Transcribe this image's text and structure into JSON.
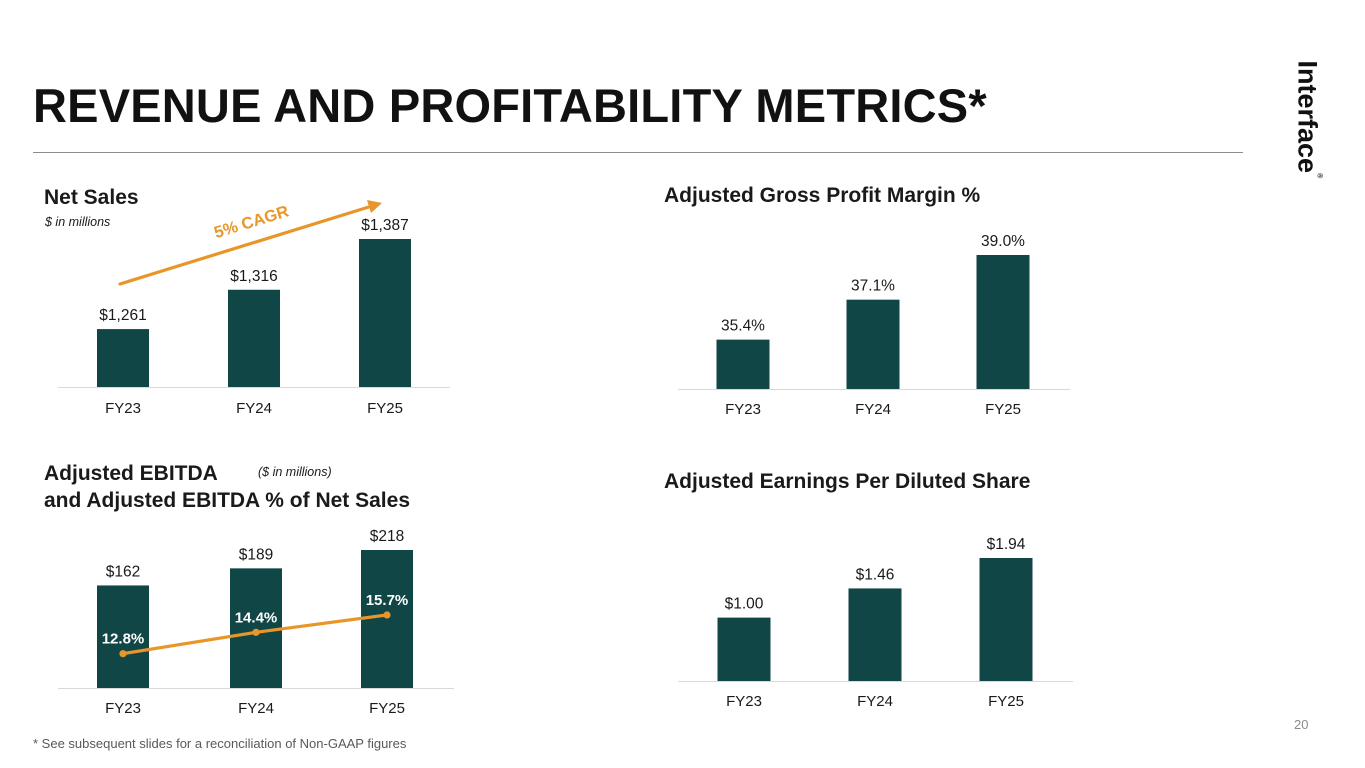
{
  "title": "REVENUE AND PROFITABILITY METRICS*",
  "logo_text": "Interface",
  "logo_mark": "®",
  "footnote": "* See subsequent slides for a reconciliation of Non-GAAP figures",
  "page_number": "20",
  "colors": {
    "bar": "#114647",
    "accent": "#e8962a",
    "text": "#1a1a1a",
    "axis": "#d9d9d9"
  },
  "chart_data": [
    {
      "type": "bar",
      "title": "Net Sales",
      "subtitle": "$ in millions",
      "categories": [
        "FY23",
        "FY24",
        "FY25"
      ],
      "values": [
        1261,
        1316,
        1387
      ],
      "data_labels": [
        "$1,261",
        "$1,316",
        "$1,387"
      ],
      "baseline_value": 1180,
      "annotation": {
        "text": "5% CAGR",
        "type": "arrow"
      }
    },
    {
      "type": "bar",
      "title": "Adjusted Gross Profit Margin %",
      "categories": [
        "FY23",
        "FY24",
        "FY25"
      ],
      "values": [
        35.4,
        37.1,
        39.0
      ],
      "data_labels": [
        "35.4%",
        "37.1%",
        "39.0%"
      ],
      "baseline_value": 33.3
    },
    {
      "type": "bar",
      "title_line1": "Adjusted EBITDA",
      "title_line2": "and Adjusted EBITDA % of Net Sales",
      "subtitle": "($ in millions)",
      "categories": [
        "FY23",
        "FY24",
        "FY25"
      ],
      "values": [
        162,
        189,
        218
      ],
      "data_labels": [
        "$162",
        "$189",
        "$218"
      ],
      "baseline_value": 0,
      "line_series": {
        "name": "Adjusted EBITDA % of Net Sales",
        "values": [
          12.8,
          14.4,
          15.7
        ],
        "labels": [
          "12.8%",
          "14.4%",
          "15.7%"
        ],
        "baseline_value": 11.5
      }
    },
    {
      "type": "bar",
      "title": "Adjusted Earnings Per Diluted Share",
      "categories": [
        "FY23",
        "FY24",
        "FY25"
      ],
      "values": [
        1.0,
        1.46,
        1.94
      ],
      "data_labels": [
        "$1.00",
        "$1.46",
        "$1.94"
      ],
      "baseline_value": 0
    }
  ]
}
